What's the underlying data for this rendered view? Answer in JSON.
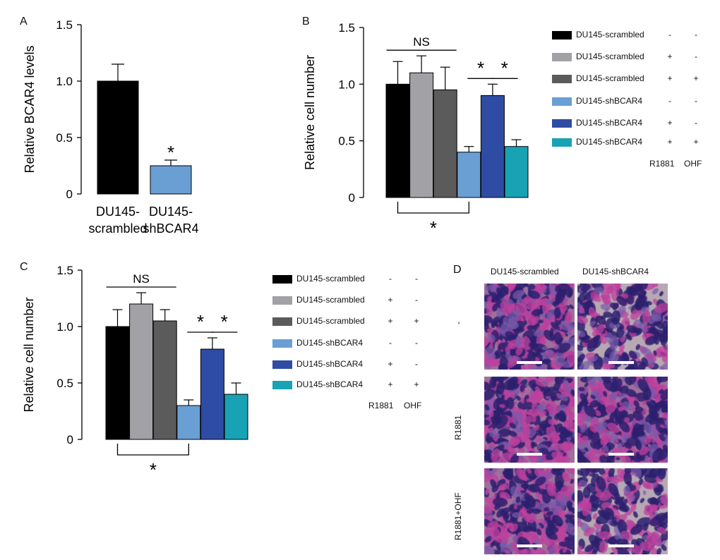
{
  "chart_data": [
    {
      "panel": "A",
      "type": "bar",
      "ylabel": "Relative BCAR4 levels",
      "ylim": [
        0,
        1.5
      ],
      "yticks": [
        "0",
        "0.5",
        "1.0",
        "1.5"
      ],
      "categories": [
        "DU145-\nscrambled",
        "DU145-\nshBCAR4"
      ],
      "values": [
        1.0,
        0.25
      ],
      "errors": [
        0.15,
        0.05
      ],
      "colors": [
        "#000000",
        "#6a9fd4"
      ],
      "sig_labels": [
        "",
        "*"
      ]
    },
    {
      "panel": "B",
      "type": "bar",
      "ylabel": "Relative cell number",
      "ylim": [
        0,
        1.5
      ],
      "yticks": [
        "0",
        "0.5",
        "1.0",
        "1.5"
      ],
      "values": [
        1.0,
        1.1,
        0.95,
        0.4,
        0.9,
        0.45
      ],
      "errors": [
        0.2,
        0.15,
        0.2,
        0.05,
        0.1,
        0.06
      ],
      "colors": [
        "#000000",
        "#a2a2a6",
        "#5b5b5b",
        "#6a9fd4",
        "#2e4ca3",
        "#18a2b4"
      ],
      "brackets": [
        {
          "from": 0,
          "to": 2,
          "label": "NS",
          "pos": "above"
        },
        {
          "from": 3,
          "to": 4,
          "label": "*",
          "pos": "above"
        },
        {
          "from": 4,
          "to": 5,
          "label": "*",
          "pos": "above"
        },
        {
          "from": 0,
          "to": 3,
          "label": "*",
          "pos": "below"
        }
      ],
      "legend": [
        {
          "label": "DU145-scrambled",
          "r1881": "-",
          "ohf": "-"
        },
        {
          "label": "DU145-scrambled",
          "r1881": "+",
          "ohf": "-"
        },
        {
          "label": "DU145-scrambled",
          "r1881": "+",
          "ohf": "+"
        },
        {
          "label": "DU145-shBCAR4",
          "r1881": "-",
          "ohf": "-"
        },
        {
          "label": "DU145-shBCAR4",
          "r1881": "+",
          "ohf": "-"
        },
        {
          "label": "DU145-shBCAR4",
          "r1881": "+",
          "ohf": "+"
        }
      ],
      "legend_footer": [
        "R1881",
        "OHF"
      ]
    },
    {
      "panel": "C",
      "type": "bar",
      "ylabel": "Relative cell number",
      "ylim": [
        0,
        1.5
      ],
      "yticks": [
        "0",
        "0.5",
        "1.0",
        "1.5"
      ],
      "values": [
        1.0,
        1.2,
        1.05,
        0.3,
        0.8,
        0.4
      ],
      "errors": [
        0.15,
        0.1,
        0.1,
        0.05,
        0.1,
        0.1
      ],
      "colors": [
        "#000000",
        "#a2a2a6",
        "#5b5b5b",
        "#6a9fd4",
        "#2e4ca3",
        "#18a2b4"
      ],
      "brackets": [
        {
          "from": 0,
          "to": 2,
          "label": "NS",
          "pos": "above"
        },
        {
          "from": 3,
          "to": 4,
          "label": "*",
          "pos": "above"
        },
        {
          "from": 4,
          "to": 5,
          "label": "*",
          "pos": "above"
        },
        {
          "from": 0,
          "to": 3,
          "label": "*",
          "pos": "below"
        }
      ],
      "legend": [
        {
          "label": "DU145-scrambled",
          "r1881": "-",
          "ohf": "-"
        },
        {
          "label": "DU145-scrambled",
          "r1881": "+",
          "ohf": "-"
        },
        {
          "label": "DU145-scrambled",
          "r1881": "+",
          "ohf": "+"
        },
        {
          "label": "DU145-shBCAR4",
          "r1881": "-",
          "ohf": "-"
        },
        {
          "label": "DU145-shBCAR4",
          "r1881": "+",
          "ohf": "-"
        },
        {
          "label": "DU145-shBCAR4",
          "r1881": "+",
          "ohf": "+"
        }
      ],
      "legend_footer": [
        "R1881",
        "OHF"
      ]
    }
  ],
  "panel_labels": {
    "a": "A",
    "b": "B",
    "c": "C",
    "d": "D"
  },
  "panel_d": {
    "col_headers": [
      "DU145-scrambled",
      "DU145-shBCAR4"
    ],
    "row_labels": [
      "-",
      "R1881",
      "R1881+OHF"
    ]
  }
}
